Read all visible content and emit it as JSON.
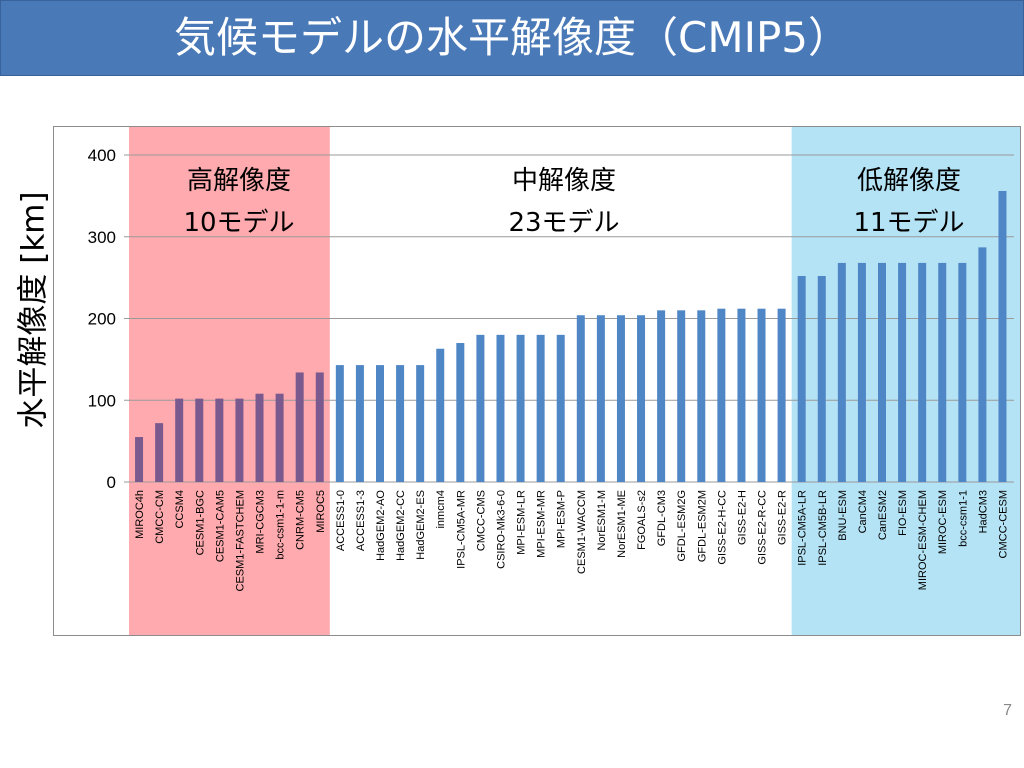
{
  "slide": {
    "title": "気候モデルの水平解像度（CMIP5）",
    "page_number": "7"
  },
  "chart_data": {
    "type": "bar",
    "title": "",
    "xlabel": "",
    "ylabel": "水平解像度 [km]",
    "ylim": [
      0,
      400
    ],
    "yticks": [
      0,
      100,
      200,
      300,
      400
    ],
    "grid": true,
    "colors": {
      "high_bar": "#7a5a8e",
      "other_bar": "#4f86c6",
      "high_bg": "#ffaaae",
      "low_bg": "#b4e3f5",
      "grid": "#9a9a9a"
    },
    "groups": [
      {
        "key": "high",
        "name": "高解像度",
        "count_label": "10モデル",
        "start": 0,
        "end": 9
      },
      {
        "key": "mid",
        "name": "中解像度",
        "count_label": "23モデル",
        "start": 10,
        "end": 32
      },
      {
        "key": "low",
        "name": "低解像度",
        "count_label": "11モデル",
        "start": 33,
        "end": 43
      }
    ],
    "categories": [
      "MIROC4h",
      "CMCC-CM",
      "CCSM4",
      "CESM1-BGC",
      "CESM1-CAM5",
      "CESM1-FASTCHEM",
      "MRI-CGCM3",
      "bcc-csm1-1-m",
      "CNRM-CM5",
      "MIROC5",
      "ACCESS1-0",
      "ACCESS1-3",
      "HadGEM2-AO",
      "HadGEM2-CC",
      "HadGEM2-ES",
      "inmcm4",
      "IPSL-CM5A-MR",
      "CMCC-CMS",
      "CSIRO-Mk3-6-0",
      "MPI-ESM-LR",
      "MPI-ESM-MR",
      "MPI-ESM-P",
      "CESM1-WACCM",
      "NorESM1-M",
      "NorESM1-ME",
      "FGOALS-s2",
      "GFDL-CM3",
      "GFDL-ESM2G",
      "GFDL-ESM2M",
      "GISS-E2-H-CC",
      "GISS-E2-H",
      "GISS-E2-R-CC",
      "GISS-E2-R",
      "IPSL-CM5A-LR",
      "IPSL-CM5B-LR",
      "BNU-ESM",
      "CanCM4",
      "CanESM2",
      "FIO-ESM",
      "MIROC-ESM-CHEM",
      "MIROC-ESM",
      "bcc-csm1-1",
      "HadCM3",
      "CMCC-CESM"
    ],
    "values": [
      55,
      72,
      102,
      102,
      102,
      102,
      108,
      108,
      134,
      134,
      143,
      143,
      143,
      143,
      143,
      163,
      170,
      180,
      180,
      180,
      180,
      180,
      204,
      204,
      204,
      204,
      210,
      210,
      210,
      212,
      212,
      212,
      212,
      252,
      252,
      268,
      268,
      268,
      268,
      268,
      268,
      268,
      287,
      356
    ]
  }
}
